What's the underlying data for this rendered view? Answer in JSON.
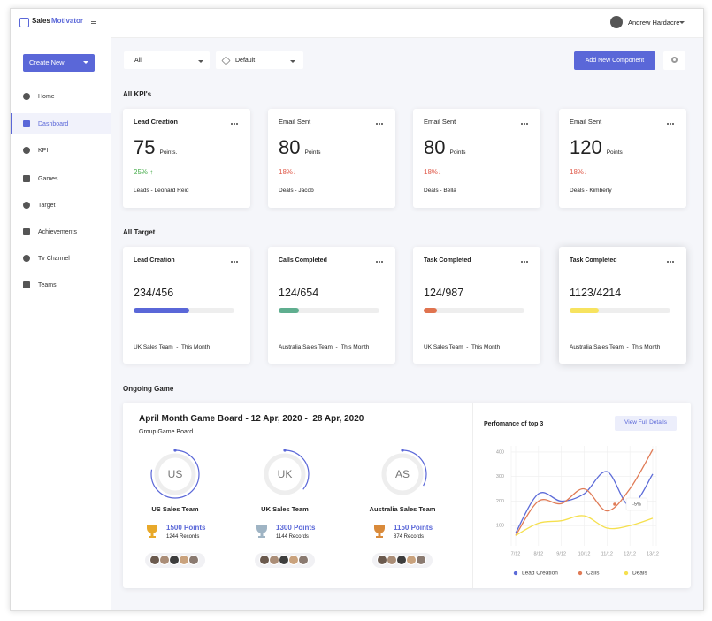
{
  "sidebar": {
    "brand": [
      "Sales",
      "Motivator"
    ],
    "create_button": "Create New",
    "menu": [
      "Home",
      "Dashboard",
      "KPI",
      "Games",
      "Target",
      "Achievements",
      "Tv Channel",
      "Teams"
    ]
  },
  "topbar": {
    "user": "Andrew Hardacre"
  },
  "filters": {
    "scope": "All",
    "view": "Default",
    "add_button": "Add New Component"
  },
  "kpi_section": {
    "title": "All KPI's",
    "cards": [
      {
        "title": "Lead Creation",
        "value": 75,
        "unit": "Points.",
        "change": "25% ↑",
        "change_color": "#4caf50",
        "footer": "Leads - Leonard Reid"
      },
      {
        "title": "Email Sent",
        "value": 80,
        "unit": "Points",
        "change": "18%↓",
        "change_color": "#e05a4a",
        "footer": "Deals - Jacob"
      },
      {
        "title": "Email Sent",
        "value": 80,
        "unit": "Points",
        "change": "18%↓",
        "change_color": "#e05a4a",
        "footer": "Deals - Bella"
      },
      {
        "title": "Email Sent",
        "value": 120,
        "unit": "Points",
        "change": "18%↓",
        "change_color": "#e05a4a",
        "footer": "Deals - Kimberly"
      }
    ]
  },
  "target_section": {
    "title": "All Target",
    "cards": [
      {
        "title": "Lead Creation",
        "progress": "234/456",
        "color": "#5a67d8",
        "footer": "UK Sales Team  -  This Month"
      },
      {
        "title": "Calls Completed",
        "progress": "124/654",
        "color": "#5fae8f",
        "footer": "Australia Sales Team  -  This Month"
      },
      {
        "title": "Task Completed",
        "progress": "124/987",
        "color": "#e0734f",
        "footer": "UK Sales Team  -  This Month"
      },
      {
        "title": "Task Completed",
        "progress": "1123/4214",
        "color": "#f7e35f",
        "footer": "Australia Sales Team  -  This Month"
      }
    ]
  },
  "game": {
    "section_title": "Ongoing Game",
    "title": "April Month Game Board - 12 Apr, 2020 -  28 Apr, 2020",
    "subtitle": "Group Game Board",
    "teams": [
      {
        "code": "US",
        "name": "US Sales Team",
        "points": "1500 Points",
        "records": "1244 Records",
        "trophy": "#e8a92a"
      },
      {
        "code": "UK",
        "name": "UK Sales Team",
        "points": "1300 Points",
        "records": "1144 Records",
        "trophy": "#9fb4c4"
      },
      {
        "code": "AS",
        "name": "Australia Sales Team",
        "points": "1150 Points",
        "records": "874 Records",
        "trophy": "#d98a3a"
      }
    ]
  },
  "performance": {
    "title": "Perfomance of top 3",
    "button": "View Full Details",
    "annotation": "-5%",
    "categories": [
      "7/12",
      "8/12",
      "9/12",
      "10/12",
      "11/12",
      "12/12",
      "13/12"
    ],
    "ylim": [
      0,
      425
    ],
    "yticks": [
      100,
      200,
      300,
      400
    ],
    "series": [
      {
        "name": "Lead Creation",
        "color": "#5c6bd8",
        "values": [
          70,
          230,
          200,
          230,
          320,
          180,
          310
        ]
      },
      {
        "name": "Calls",
        "color": "#e07b56",
        "values": [
          60,
          200,
          190,
          250,
          160,
          250,
          410
        ]
      },
      {
        "name": "Deals",
        "color": "#f5e04f",
        "values": [
          60,
          110,
          120,
          140,
          90,
          100,
          130
        ]
      }
    ]
  }
}
